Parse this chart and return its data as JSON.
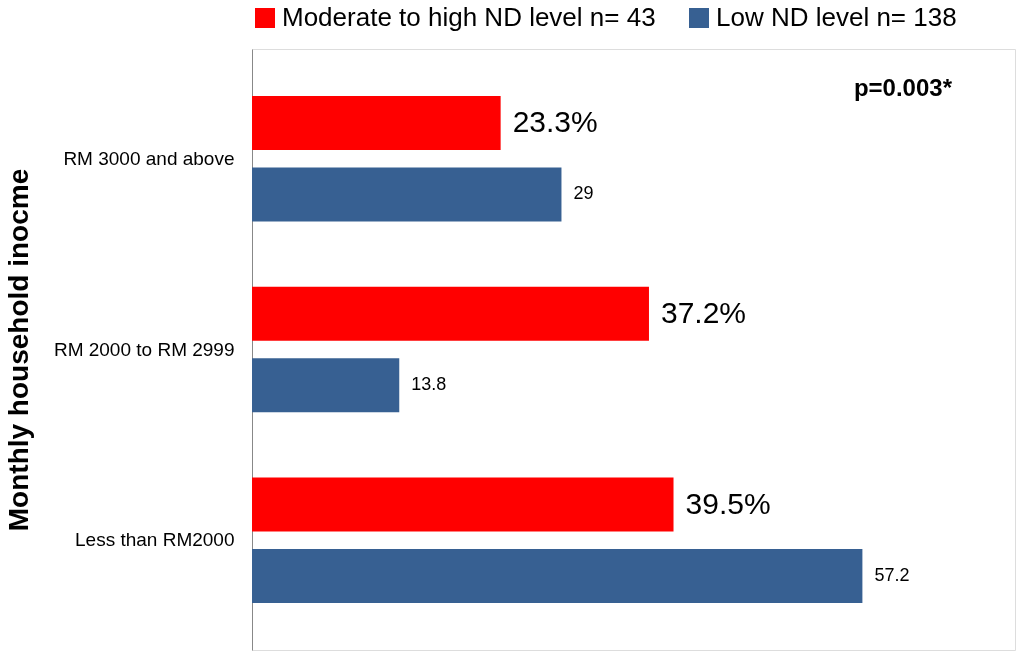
{
  "chart_data": {
    "type": "bar",
    "orientation": "horizontal",
    "ylabel": "Monthly household inocme",
    "categories": [
      "RM 3000 and above",
      "RM 2000 to RM 2999",
      "Less than RM2000"
    ],
    "series": [
      {
        "name": "Moderate to high ND level n= 43",
        "color": "#ff0000",
        "values": [
          23.3,
          37.2,
          39.5
        ],
        "value_labels": [
          "23.3%",
          "37.2%",
          "39.5%"
        ]
      },
      {
        "name": "Low ND level n= 138",
        "color": "#376092",
        "values": [
          29,
          13.8,
          57.2
        ],
        "value_labels": [
          "29",
          "13.8",
          "57.2"
        ]
      }
    ],
    "legend": "top",
    "annotations": [
      "p=0.003*"
    ]
  }
}
